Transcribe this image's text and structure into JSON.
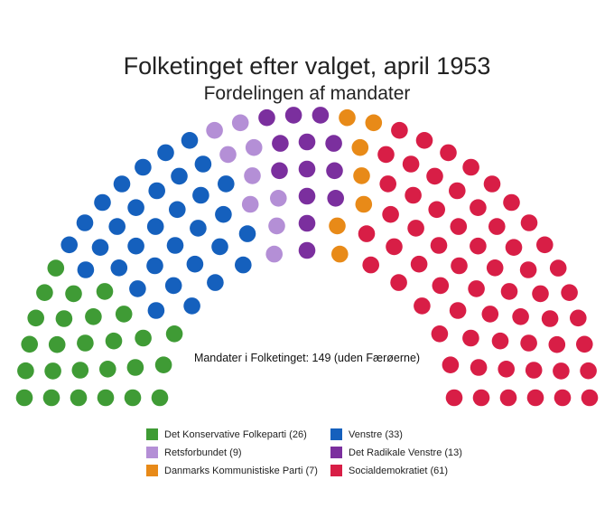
{
  "chart_data": {
    "type": "parliament",
    "title": "Folketinget efter valget, april 1953",
    "subtitle": "Fordelingen af mandater",
    "annotation": "Mandater i Folketinget: 149 (uden Færøerne)",
    "total_seats": 149,
    "legend_placement": "bottom",
    "parties": [
      {
        "name": "Det Konservative Folkeparti (26)",
        "seats": 26,
        "color": "#3f9b35"
      },
      {
        "name": "Venstre (33)",
        "seats": 33,
        "color": "#1560bd"
      },
      {
        "name": "Retsforbundet (9)",
        "seats": 9,
        "color": "#b48fd6"
      },
      {
        "name": "Det Radikale Venstre (13)",
        "seats": 13,
        "color": "#7b2f9e"
      },
      {
        "name": "Danmarks Kommunistiske Parti (7)",
        "seats": 7,
        "color": "#e88a18"
      },
      {
        "name": "Socialdemokratiet (61)",
        "seats": 61,
        "color": "#d81e46"
      }
    ]
  }
}
